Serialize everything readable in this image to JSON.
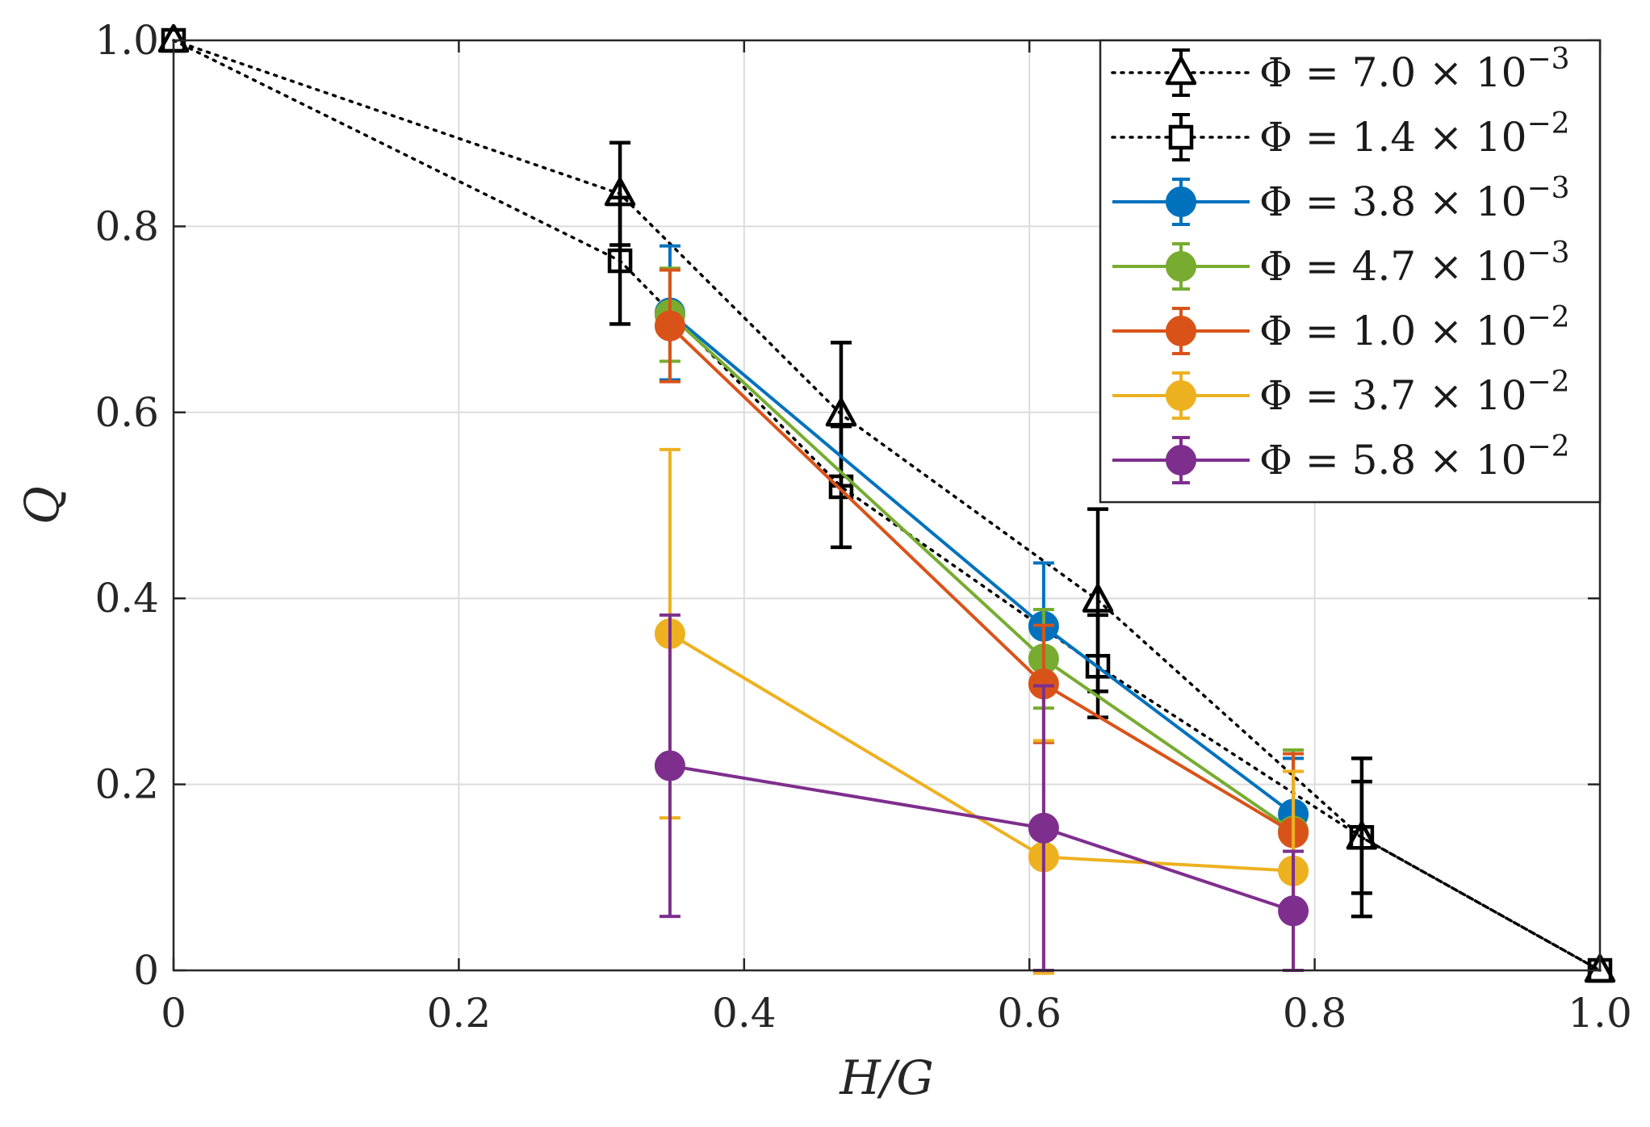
{
  "chart_data": {
    "type": "line",
    "xlabel": "H/G",
    "ylabel": "Q",
    "xlim": [
      0,
      1.0
    ],
    "ylim": [
      0,
      1.0
    ],
    "grid": true,
    "legend_position": "top-right",
    "x_ticks": [
      {
        "value": 0,
        "label": "0"
      },
      {
        "value": 0.2,
        "label": "0.2"
      },
      {
        "value": 0.4,
        "label": "0.4"
      },
      {
        "value": 0.6,
        "label": "0.6"
      },
      {
        "value": 0.8,
        "label": "0.8"
      },
      {
        "value": 1.0,
        "label": "1.0"
      }
    ],
    "y_ticks": [
      {
        "value": 0,
        "label": "0"
      },
      {
        "value": 0.2,
        "label": "0.2"
      },
      {
        "value": 0.4,
        "label": "0.4"
      },
      {
        "value": 0.6,
        "label": "0.6"
      },
      {
        "value": 0.8,
        "label": "0.8"
      },
      {
        "value": 1.0,
        "label": "1.0"
      }
    ],
    "series": [
      {
        "name": "Φ = 7.0 × 10⁻³",
        "legend_mantissa": "Φ = 7.0 × 10",
        "legend_exponent": "−3",
        "color": "#000000",
        "line": "dotted",
        "marker": "triangle",
        "points": [
          {
            "x": 0,
            "y": 1.0,
            "err": 0
          },
          {
            "x": 0.313,
            "y": 0.835,
            "err": 0.055
          },
          {
            "x": 0.468,
            "y": 0.598,
            "err": 0.077
          },
          {
            "x": 0.648,
            "y": 0.398,
            "err": 0.098
          },
          {
            "x": 0.833,
            "y": 0.143,
            "err": 0.085
          },
          {
            "x": 1.0,
            "y": 0.0,
            "err": 0
          }
        ]
      },
      {
        "name": "Φ = 1.4 × 10⁻²",
        "legend_mantissa": "Φ = 1.4 × 10",
        "legend_exponent": "−2",
        "color": "#000000",
        "line": "dotted",
        "marker": "square",
        "points": [
          {
            "x": 0,
            "y": 1.0,
            "err": 0
          },
          {
            "x": 0.313,
            "y": 0.763,
            "err": 0.068
          },
          {
            "x": 0.468,
            "y": 0.52,
            "err": 0.065
          },
          {
            "x": 0.648,
            "y": 0.327,
            "err": 0.055
          },
          {
            "x": 0.833,
            "y": 0.143,
            "err": 0.06
          },
          {
            "x": 1.0,
            "y": 0.0,
            "err": 0
          }
        ]
      },
      {
        "name": "Φ = 3.8 × 10⁻³",
        "legend_mantissa": "Φ = 3.8 × 10",
        "legend_exponent": "−3",
        "color": "#0072BD",
        "line": "solid",
        "marker": "circle",
        "points": [
          {
            "x": 0.348,
            "y": 0.707,
            "err": 0.072
          },
          {
            "x": 0.61,
            "y": 0.37,
            "err": 0.068
          },
          {
            "x": 0.785,
            "y": 0.168,
            "err": 0.06
          }
        ]
      },
      {
        "name": "Φ = 4.7 × 10⁻³",
        "legend_mantissa": "Φ = 4.7 × 10",
        "legend_exponent": "−3",
        "color": "#77AC30",
        "line": "solid",
        "marker": "circle",
        "points": [
          {
            "x": 0.348,
            "y": 0.705,
            "err": 0.05
          },
          {
            "x": 0.61,
            "y": 0.335,
            "err": 0.053
          },
          {
            "x": 0.785,
            "y": 0.15,
            "err": 0.087
          }
        ]
      },
      {
        "name": "Φ = 1.0 × 10⁻²",
        "legend_mantissa": "Φ = 1.0 × 10",
        "legend_exponent": "−2",
        "color": "#D95319",
        "line": "solid",
        "marker": "circle",
        "points": [
          {
            "x": 0.348,
            "y": 0.693,
            "err": 0.06
          },
          {
            "x": 0.61,
            "y": 0.308,
            "err": 0.063
          },
          {
            "x": 0.785,
            "y": 0.148,
            "err": 0.085
          }
        ]
      },
      {
        "name": "Φ = 3.7 × 10⁻²",
        "legend_mantissa": "Φ = 3.7 × 10",
        "legend_exponent": "−2",
        "color": "#EDB120",
        "line": "solid",
        "marker": "circle",
        "points": [
          {
            "x": 0.348,
            "y": 0.362,
            "err": 0.198
          },
          {
            "x": 0.61,
            "y": 0.122,
            "err": 0.125
          },
          {
            "x": 0.785,
            "y": 0.107,
            "err": 0.107
          }
        ]
      },
      {
        "name": "Φ = 5.8 × 10⁻²",
        "legend_mantissa": "Φ = 5.8 × 10",
        "legend_exponent": "−2",
        "color": "#7E2F8E",
        "line": "solid",
        "marker": "circle",
        "points": [
          {
            "x": 0.348,
            "y": 0.22,
            "err": 0.162
          },
          {
            "x": 0.61,
            "y": 0.153,
            "err": 0.153
          },
          {
            "x": 0.785,
            "y": 0.064,
            "err": 0.064
          }
        ]
      }
    ]
  }
}
